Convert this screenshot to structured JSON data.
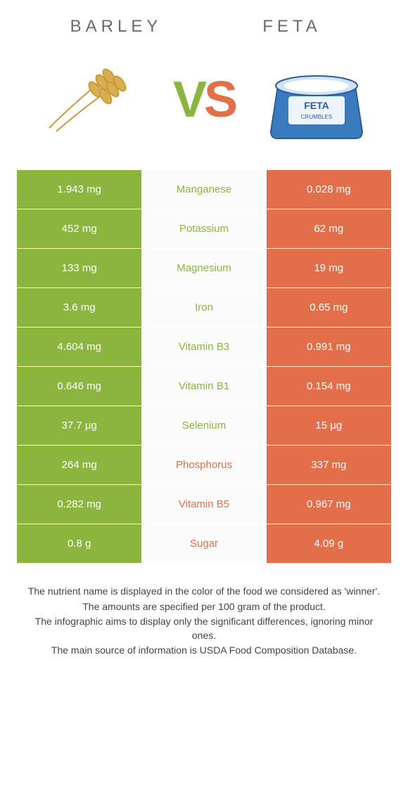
{
  "colors": {
    "left": "#8bb53f",
    "right": "#e36f4a",
    "mid_bg": "#fbfbfb",
    "header_text": "#6a6a6a",
    "footer_text": "#444444"
  },
  "header": {
    "left_title": "BARLEY",
    "right_title": "FETA",
    "left_icon": "barley-icon",
    "right_icon": "feta-icon"
  },
  "vs": {
    "v": "V",
    "s": "S"
  },
  "rows": [
    {
      "nutrient": "Manganese",
      "left": "1.943 mg",
      "right": "0.028 mg",
      "winner": "left"
    },
    {
      "nutrient": "Potassium",
      "left": "452 mg",
      "right": "62 mg",
      "winner": "left"
    },
    {
      "nutrient": "Magnesium",
      "left": "133 mg",
      "right": "19 mg",
      "winner": "left"
    },
    {
      "nutrient": "Iron",
      "left": "3.6 mg",
      "right": "0.65 mg",
      "winner": "left"
    },
    {
      "nutrient": "Vitamin B3",
      "left": "4.604 mg",
      "right": "0.991 mg",
      "winner": "left"
    },
    {
      "nutrient": "Vitamin B1",
      "left": "0.646 mg",
      "right": "0.154 mg",
      "winner": "left"
    },
    {
      "nutrient": "Selenium",
      "left": "37.7 µg",
      "right": "15 µg",
      "winner": "left"
    },
    {
      "nutrient": "Phosphorus",
      "left": "264 mg",
      "right": "337 mg",
      "winner": "right"
    },
    {
      "nutrient": "Vitamin B5",
      "left": "0.282 mg",
      "right": "0.967 mg",
      "winner": "right"
    },
    {
      "nutrient": "Sugar",
      "left": "0.8 g",
      "right": "4.09 g",
      "winner": "right"
    }
  ],
  "footer": {
    "l1": "The nutrient name is displayed in the color of the food we considered as 'winner'.",
    "l2": "The amounts are specified per 100 gram of the product.",
    "l3": "The infographic aims to display only the significant differences, ignoring minor ones.",
    "l4": "The main source of information is USDA Food Composition Database."
  }
}
